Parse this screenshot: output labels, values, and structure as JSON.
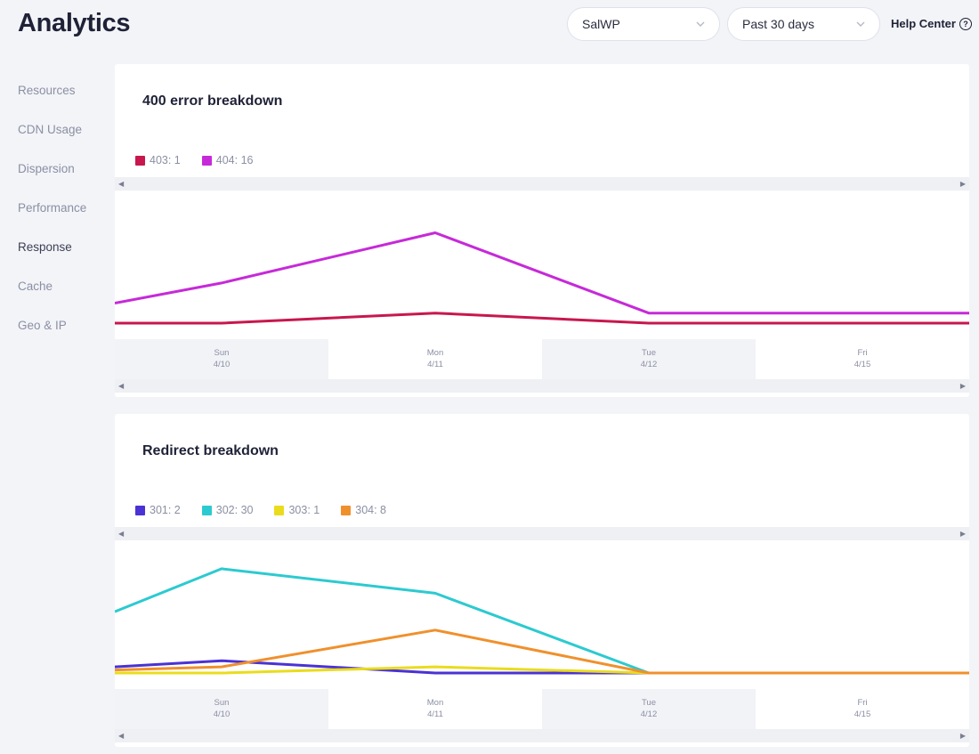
{
  "header": {
    "title": "Analytics",
    "site_select": "SalWP",
    "range_select": "Past 30 days",
    "help_label": "Help Center",
    "help_icon": "?"
  },
  "sidebar": {
    "items": [
      {
        "label": "Resources"
      },
      {
        "label": "CDN Usage"
      },
      {
        "label": "Dispersion"
      },
      {
        "label": "Performance"
      },
      {
        "label": "Response",
        "active": true
      },
      {
        "label": "Cache"
      },
      {
        "label": "Geo & IP"
      }
    ]
  },
  "charts": [
    {
      "title": "400 error breakdown",
      "legend": [
        "403: 1",
        "404: 16"
      ]
    },
    {
      "title": "Redirect breakdown",
      "legend": [
        "301: 2",
        "302: 30",
        "303: 1",
        "304: 8"
      ]
    }
  ],
  "axis": {
    "days": [
      "Sun",
      "Mon",
      "Tue",
      "Fri"
    ],
    "dates": [
      "4/10",
      "4/11",
      "4/12",
      "4/15"
    ]
  },
  "chart_data": [
    {
      "type": "line",
      "title": "400 error breakdown",
      "categories": [
        "",
        "Sun 4/10",
        "Mon 4/11",
        "Tue 4/12",
        "Fri 4/15",
        ""
      ],
      "ylim": [
        0,
        11
      ],
      "series": [
        {
          "name": "403: 1",
          "color": "#c8174e",
          "values": [
            0,
            0,
            1,
            0,
            0,
            0
          ]
        },
        {
          "name": "404: 16",
          "color": "#c62ad8",
          "values": [
            2,
            4,
            9,
            1,
            1,
            1
          ]
        }
      ]
    },
    {
      "type": "line",
      "title": "Redirect breakdown",
      "categories": [
        "",
        "Sun 4/10",
        "Mon 4/11",
        "Tue 4/12",
        "Fri 4/15",
        ""
      ],
      "ylim": [
        0,
        18
      ],
      "series": [
        {
          "name": "301: 2",
          "color": "#4a32d4",
          "values": [
            1,
            2,
            0,
            0,
            0,
            0
          ]
        },
        {
          "name": "302: 30",
          "color": "#2ccad0",
          "values": [
            10,
            17,
            13,
            0,
            0,
            0
          ]
        },
        {
          "name": "303: 1",
          "color": "#eadc1c",
          "values": [
            0,
            0,
            1,
            0,
            0,
            0
          ]
        },
        {
          "name": "304: 8",
          "color": "#f0902c",
          "values": [
            0.5,
            1,
            7,
            0,
            0,
            0
          ]
        }
      ]
    }
  ]
}
